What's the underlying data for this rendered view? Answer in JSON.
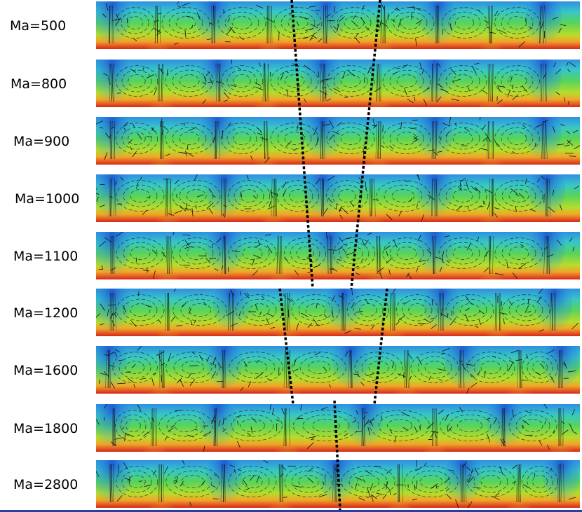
{
  "figure": {
    "rows": [
      {
        "label": "Ma=500"
      },
      {
        "label": "Ma=800"
      },
      {
        "label": "Ma=900"
      },
      {
        "label": "Ma=1000"
      },
      {
        "label": "Ma=1100"
      },
      {
        "label": "Ma=1200"
      },
      {
        "label": "Ma=1600"
      },
      {
        "label": "Ma=1800"
      },
      {
        "label": "Ma=2800"
      }
    ],
    "colormap": [
      "#1f5fd6",
      "#21a6e0",
      "#36d0b8",
      "#5bd35a",
      "#d7df2a",
      "#f08a24",
      "#d7261e"
    ],
    "vector_color": "#111111",
    "guide_line_color": "#000000"
  }
}
